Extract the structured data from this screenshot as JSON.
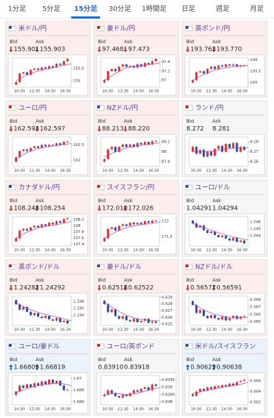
{
  "tabs": [
    "1分足",
    "5分足",
    "15分足",
    "30分足",
    "1時間足",
    "日足",
    "週足",
    "月足"
  ],
  "selected_tab": 2,
  "bid_label": "Bid",
  "ask_label": "Ask",
  "chart_x_labels": [
    "10:30",
    "12:30",
    "14:30",
    "16:30"
  ],
  "tiles": [
    {
      "name": "米ドル/円",
      "bid": "155.901",
      "ask": "155.903",
      "trend": "down",
      "ylim": [
        154.75,
        155.95
      ],
      "yticks": [
        155.5,
        155
      ],
      "closes": [
        154.85,
        154.95,
        155.3,
        155.35,
        155.25,
        155.45,
        155.5,
        155.45,
        155.55,
        155.5,
        155.6,
        155.55,
        155.7,
        155.65,
        155.8,
        155.9
      ],
      "ma": [
        155.0,
        155.25,
        155.4,
        155.5,
        155.6,
        155.7
      ]
    },
    {
      "name": "豪ドル/円",
      "bid": "97.468",
      "ask": "97.473",
      "trend": "down",
      "ylim": [
        96.85,
        97.5
      ],
      "yticks": [
        97.4,
        97.2,
        97
      ],
      "closes": [
        96.95,
        97.0,
        97.2,
        97.25,
        97.2,
        97.3,
        97.35,
        97.3,
        97.32,
        97.28,
        97.35,
        97.3,
        97.38,
        97.35,
        97.42,
        97.47
      ],
      "ma": [
        97.0,
        97.15,
        97.28,
        97.31,
        97.34,
        97.38
      ]
    },
    {
      "name": "英ポンド/円",
      "bid": "193.763",
      "ask": "193.770",
      "trend": "down",
      "ylim": [
        192.8,
        194.1
      ],
      "yticks": [
        194,
        193.5,
        193
      ],
      "closes": [
        193.0,
        193.1,
        193.45,
        193.5,
        193.4,
        193.6,
        193.7,
        193.6,
        193.75,
        193.7,
        193.8,
        193.75,
        193.8,
        193.7,
        193.75,
        193.76
      ],
      "ma": [
        193.1,
        193.35,
        193.55,
        193.65,
        193.72,
        193.75
      ]
    },
    {
      "name": "ユーロ/円",
      "bid": "162.593",
      "ask": "162.597",
      "trend": "down",
      "ylim": [
        161.8,
        162.75
      ],
      "yticks": [
        162.5,
        162
      ],
      "closes": [
        161.95,
        162.1,
        162.3,
        162.35,
        162.3,
        162.4,
        162.45,
        162.4,
        162.5,
        162.45,
        162.5,
        162.48,
        162.55,
        162.5,
        162.6,
        162.59
      ],
      "ma": [
        162.05,
        162.25,
        162.38,
        162.44,
        162.49,
        162.54
      ]
    },
    {
      "name": "NZドル/円",
      "bid": "88.213",
      "ask": "88.220",
      "trend": "down",
      "ylim": [
        87.7,
        88.3
      ],
      "yticks": [
        88.2,
        88,
        87.8
      ],
      "closes": [
        87.8,
        87.85,
        88.05,
        88.1,
        88.0,
        88.1,
        88.15,
        88.1,
        88.15,
        88.1,
        88.18,
        88.15,
        88.2,
        88.15,
        88.22,
        88.21
      ],
      "ma": [
        87.9,
        88.0,
        88.08,
        88.12,
        88.15,
        88.18
      ]
    },
    {
      "name": "ランド/円",
      "bid": "8.272",
      "ask": "8.281",
      "trend": "none",
      "ylim": [
        8.255,
        8.285
      ],
      "yticks": [
        8.28,
        8.27,
        8.26
      ],
      "closes": [
        8.27,
        8.275,
        8.268,
        8.272,
        8.265,
        8.27,
        8.266,
        8.273,
        8.276,
        8.27,
        8.278,
        8.274,
        8.279,
        8.27,
        8.275,
        8.272
      ],
      "ma": [
        8.271,
        8.27,
        8.271,
        8.273,
        8.274,
        8.274
      ]
    },
    {
      "name": "カナダドル/円",
      "bid": "108.248",
      "ask": "108.254",
      "trend": "down",
      "ylim": [
        107.35,
        108.3
      ],
      "yticks": [
        108.2,
        108,
        107.8,
        107.6,
        107.4
      ],
      "closes": [
        107.5,
        107.6,
        107.85,
        107.9,
        107.85,
        107.95,
        108.0,
        107.95,
        108.05,
        108.0,
        108.1,
        108.05,
        108.15,
        108.1,
        108.22,
        108.25
      ],
      "ma": [
        107.6,
        107.8,
        107.93,
        108.0,
        108.06,
        108.14
      ]
    },
    {
      "name": "スイスフラン/円",
      "bid": "172.010",
      "ask": "172.026",
      "trend": "down",
      "ylim": [
        171.2,
        172.15
      ],
      "yticks": [
        172,
        171.5
      ],
      "closes": [
        171.35,
        171.45,
        171.75,
        171.8,
        171.7,
        171.85,
        171.9,
        171.85,
        171.95,
        171.9,
        171.95,
        171.9,
        172.0,
        171.95,
        172.02,
        172.01
      ],
      "ma": [
        171.45,
        171.65,
        171.8,
        171.87,
        171.92,
        171.96
      ]
    },
    {
      "name": "ユーロ/ドル",
      "bid": "1.04291",
      "ask": "1.04294",
      "trend": "none",
      "ylim": [
        1.0425,
        1.0468
      ],
      "yticks": [
        1.046,
        1.045,
        1.044
      ],
      "closes": [
        1.0462,
        1.0458,
        1.0452,
        1.0455,
        1.0448,
        1.0444,
        1.0446,
        1.0441,
        1.0438,
        1.044,
        1.0436,
        1.0433,
        1.0437,
        1.0431,
        1.0433,
        1.0429
      ],
      "ma": [
        1.0458,
        1.0452,
        1.0446,
        1.0441,
        1.0437,
        1.0434
      ]
    },
    {
      "name": "英ポンド/ドル",
      "bid": "1.24282",
      "ask": "1.24292",
      "trend": "down",
      "ylim": [
        1.2425,
        1.2468
      ],
      "yticks": [
        1.246,
        1.245,
        1.244
      ],
      "closes": [
        1.2462,
        1.2456,
        1.2448,
        1.2452,
        1.2445,
        1.244,
        1.2443,
        1.2438,
        1.2436,
        1.2439,
        1.2434,
        1.2432,
        1.2436,
        1.243,
        1.2432,
        1.2428
      ],
      "ma": [
        1.2458,
        1.245,
        1.2444,
        1.244,
        1.2436,
        1.2432
      ]
    },
    {
      "name": "豪ドル/ドル",
      "bid": "0.62518",
      "ask": "0.62522",
      "trend": "down",
      "ylim": [
        0.6248,
        0.6292
      ],
      "yticks": [
        0.629,
        0.628,
        0.627,
        0.626,
        0.625
      ],
      "closes": [
        0.6285,
        0.628,
        0.6268,
        0.6272,
        0.6262,
        0.6258,
        0.6262,
        0.6256,
        0.6254,
        0.6258,
        0.6253,
        0.6255,
        0.6258,
        0.6252,
        0.6254,
        0.6252
      ],
      "ma": [
        0.6282,
        0.6272,
        0.6263,
        0.6258,
        0.6256,
        0.6255
      ]
    },
    {
      "name": "NZドル/ドル",
      "bid": "0.56577",
      "ask": "0.56591",
      "trend": "down",
      "ylim": [
        0.5645,
        0.5685
      ],
      "yticks": [
        0.568,
        0.567,
        0.566,
        0.565
      ],
      "closes": [
        0.5678,
        0.5673,
        0.5662,
        0.5666,
        0.5658,
        0.5655,
        0.5659,
        0.5655,
        0.5653,
        0.5657,
        0.5652,
        0.5655,
        0.5658,
        0.5654,
        0.5657,
        0.5658
      ],
      "ma": [
        0.5675,
        0.5666,
        0.566,
        0.5657,
        0.5655,
        0.5656
      ]
    },
    {
      "name": "ユーロ/豪ドル",
      "bid": "1.66805",
      "ask": "1.66819",
      "trend": "up",
      "ylim": [
        1.6655,
        1.6705
      ],
      "yticks": [
        1.67,
        1.668,
        1.666
      ],
      "closes": [
        1.6672,
        1.6678,
        1.6688,
        1.6684,
        1.669,
        1.6685,
        1.6692,
        1.6688,
        1.6695,
        1.669,
        1.6698,
        1.6692,
        1.6696,
        1.6688,
        1.668,
        1.6681
      ],
      "ma": [
        1.6676,
        1.6683,
        1.6688,
        1.6691,
        1.6692,
        1.6688
      ]
    },
    {
      "name": "ユーロ/英ポンド",
      "bid": "0.83910",
      "ask": "0.83918",
      "trend": "none",
      "ylim": [
        0.8378,
        0.8398
      ],
      "yticks": [
        0.8395,
        0.839,
        0.8385,
        0.838
      ],
      "closes": [
        0.8384,
        0.8385,
        0.8388,
        0.8386,
        0.8384,
        0.8383,
        0.8385,
        0.8384,
        0.8386,
        0.8388,
        0.8387,
        0.8389,
        0.839,
        0.8388,
        0.8392,
        0.8391
      ],
      "ma": [
        0.8385,
        0.8386,
        0.8385,
        0.8386,
        0.8388,
        0.839
      ]
    },
    {
      "name": "米ドル/スイスフラン",
      "bid": "0.90623",
      "ask": "0.90638",
      "trend": "up",
      "ylim": [
        0.9015,
        0.907
      ],
      "yticks": [
        0.906,
        0.904,
        0.902
      ],
      "closes": [
        0.9035,
        0.9032,
        0.904,
        0.9045,
        0.9042,
        0.9048,
        0.9045,
        0.905,
        0.9048,
        0.9052,
        0.905,
        0.9055,
        0.9052,
        0.9058,
        0.906,
        0.9062
      ],
      "ma": [
        0.9036,
        0.9041,
        0.9045,
        0.9049,
        0.9052,
        0.9057
      ]
    }
  ]
}
